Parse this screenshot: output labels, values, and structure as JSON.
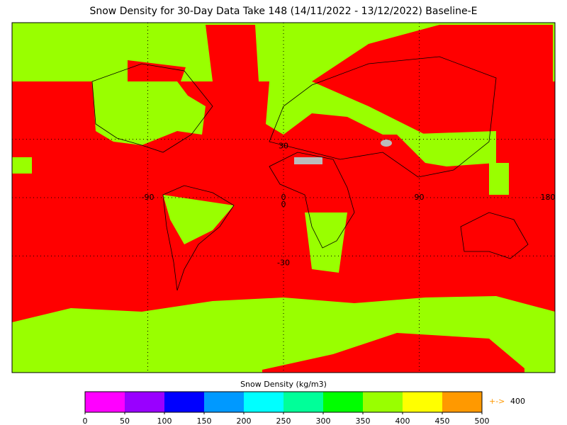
{
  "title": "Snow Density for 30-Day Data Take 148 (14/11/2022 - 13/12/2022) Baseline-E",
  "map": {
    "xlim": [
      -180,
      180
    ],
    "ylim": [
      -90,
      90
    ],
    "lon_ticks": [
      -90,
      0,
      90,
      180
    ],
    "lat_ticks": [
      30,
      0,
      -30
    ]
  },
  "colorbar": {
    "label": "Snow Density (kg/m3)",
    "bins": [
      0,
      50,
      100,
      150,
      200,
      250,
      300,
      350,
      400,
      450,
      500
    ],
    "colors": [
      "#ff00ff",
      "#9900ff",
      "#0000ff",
      "#0099ff",
      "#00ffff",
      "#00ff99",
      "#00ff00",
      "#99ff00",
      "#ffff00",
      "#ff9900"
    ]
  },
  "overflow": {
    "symbol": "+->",
    "value": 400,
    "color": "#ff9900"
  }
}
